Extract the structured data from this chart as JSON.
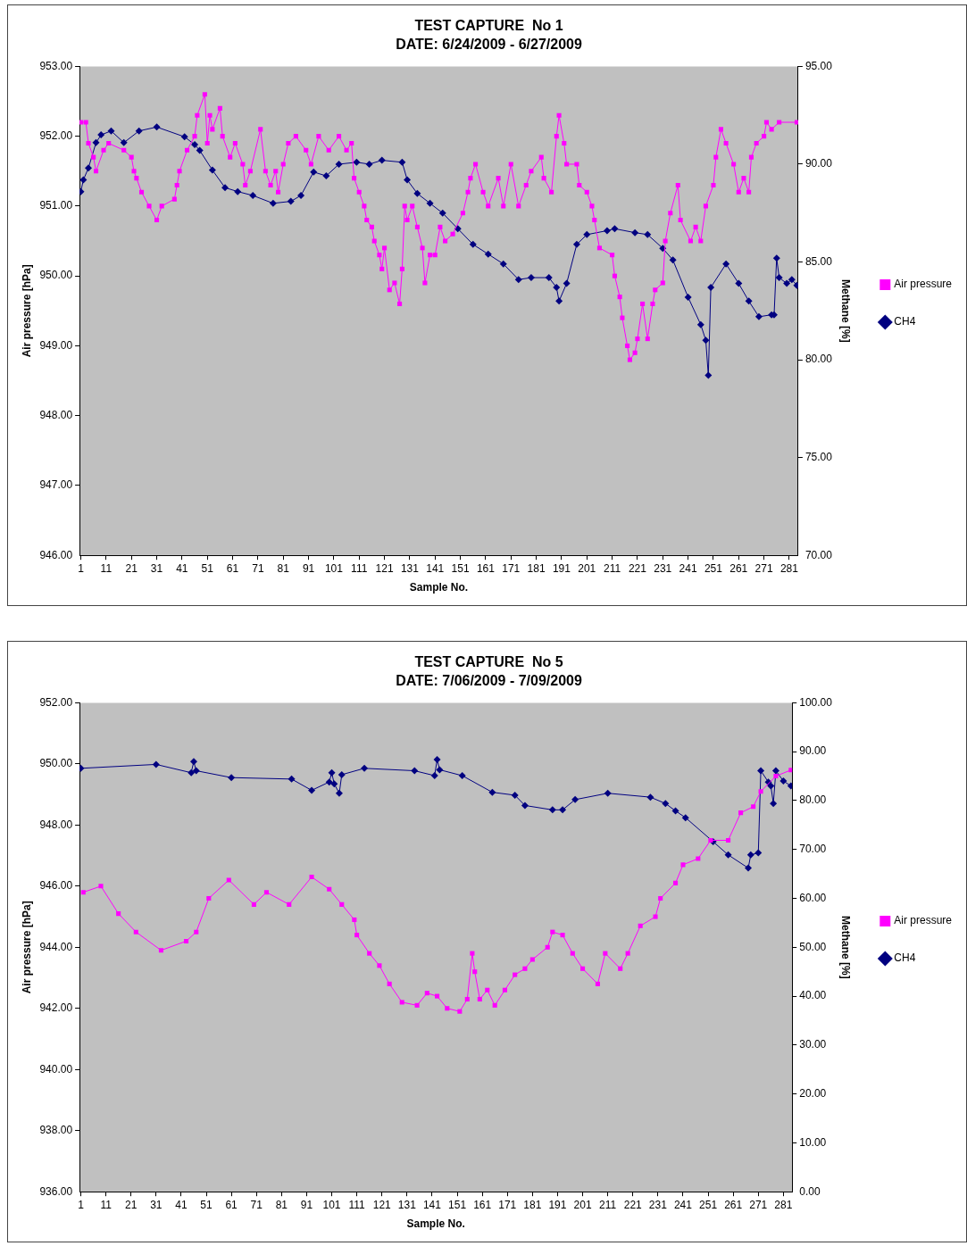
{
  "chart_data": [
    {
      "type": "line",
      "title": "TEST CAPTURE  No 1",
      "subtitle": "DATE: 6/24/2009 - 6/27/2009",
      "xlabel": "Sample No.",
      "ylabel": "Air pressure [hPa]",
      "y2label": "Methane [%]",
      "legend": "right",
      "grid": false,
      "xlim": [
        0.5,
        284.5
      ],
      "xticks": [
        1,
        11,
        21,
        31,
        41,
        51,
        61,
        71,
        81,
        91,
        101,
        111,
        121,
        131,
        141,
        151,
        161,
        171,
        181,
        191,
        201,
        211,
        221,
        231,
        241,
        251,
        261,
        271,
        281
      ],
      "ylim": [
        946,
        953
      ],
      "yticks": [
        {
          "value": 946,
          "label": "946.00"
        },
        {
          "value": 947,
          "label": "947.00"
        },
        {
          "value": 948,
          "label": "948.00"
        },
        {
          "value": 949,
          "label": "949.00"
        },
        {
          "value": 950,
          "label": "950.00"
        },
        {
          "value": 951,
          "label": "951.00"
        },
        {
          "value": 952,
          "label": "952.00"
        },
        {
          "value": 953,
          "label": "953.00"
        }
      ],
      "y2lim": [
        70,
        95
      ],
      "y2ticks": [
        {
          "value": 70,
          "label": "70.00"
        },
        {
          "value": 75,
          "label": "75.00"
        },
        {
          "value": 80,
          "label": "80.00"
        },
        {
          "value": 85,
          "label": "85.00"
        },
        {
          "value": 90,
          "label": "90.00"
        },
        {
          "value": 95,
          "label": "95.00"
        }
      ],
      "series": [
        {
          "name": "Air pressure",
          "color": "#ff00ff",
          "marker": "square",
          "x": [
            1,
            3,
            4,
            6,
            7,
            10,
            12,
            18,
            21,
            22,
            23,
            25,
            28,
            31,
            33,
            38,
            39,
            40,
            43,
            46,
            47,
            50,
            51,
            52,
            53,
            56,
            57,
            60,
            62,
            65,
            66,
            68,
            72,
            74,
            76,
            78,
            79,
            81,
            83,
            86,
            90,
            92,
            95,
            99,
            103,
            106,
            108,
            109,
            111,
            113,
            114,
            116,
            117,
            119,
            120,
            121,
            123,
            125,
            127,
            128,
            129,
            130,
            132,
            134,
            136,
            137,
            139,
            141,
            143,
            145,
            148,
            152,
            154,
            155,
            157,
            160,
            162,
            166,
            168,
            171,
            174,
            177,
            179,
            183,
            184,
            187,
            189,
            190,
            192,
            193,
            197,
            198,
            201,
            203,
            204,
            206,
            211,
            212,
            214,
            215,
            217,
            218,
            220,
            221,
            223,
            225,
            227,
            228,
            231,
            232,
            234,
            237,
            238,
            242,
            244,
            246,
            248,
            251,
            252,
            254,
            256,
            259,
            261,
            263,
            265,
            266,
            268,
            271,
            272,
            274,
            277,
            284
          ],
          "values": [
            952.2,
            952.2,
            951.9,
            951.7,
            951.5,
            951.8,
            951.9,
            951.8,
            951.7,
            951.5,
            951.4,
            951.2,
            951.0,
            950.8,
            951.0,
            951.1,
            951.3,
            951.5,
            951.8,
            952.0,
            952.3,
            952.6,
            951.9,
            952.3,
            952.1,
            952.4,
            952.0,
            951.7,
            951.9,
            951.6,
            951.3,
            951.5,
            952.1,
            951.5,
            951.3,
            951.5,
            951.2,
            951.6,
            951.9,
            952.0,
            951.8,
            951.6,
            952.0,
            951.8,
            952.0,
            951.8,
            951.9,
            951.4,
            951.2,
            951.0,
            950.8,
            950.7,
            950.5,
            950.3,
            950.1,
            950.4,
            949.8,
            949.9,
            949.6,
            950.1,
            951.0,
            950.8,
            951.0,
            950.7,
            950.4,
            949.9,
            950.3,
            950.3,
            950.7,
            950.5,
            950.6,
            950.9,
            951.2,
            951.4,
            951.6,
            951.2,
            951.0,
            951.4,
            951.0,
            951.6,
            951.0,
            951.3,
            951.5,
            951.7,
            951.4,
            951.2,
            952.0,
            952.3,
            951.9,
            951.6,
            951.6,
            951.3,
            951.2,
            951.0,
            950.8,
            950.4,
            950.3,
            950.0,
            949.7,
            949.4,
            949.0,
            948.8,
            948.9,
            949.1,
            949.6,
            949.1,
            949.6,
            949.8,
            949.9,
            950.5,
            950.9,
            951.3,
            950.8,
            950.5,
            950.7,
            950.5,
            951.0,
            951.3,
            951.7,
            952.1,
            951.9,
            951.6,
            951.2,
            951.4,
            951.2,
            951.7,
            951.9,
            952.0,
            952.2,
            952.1,
            952.2,
            952.2
          ]
        },
        {
          "name": "CH4",
          "color": "#000080",
          "marker": "diamond",
          "axis": "y2",
          "x": [
            1,
            2,
            4,
            7,
            9,
            13,
            18,
            24,
            31,
            42,
            46,
            48,
            53,
            58,
            63,
            69,
            77,
            84,
            88,
            93,
            98,
            103,
            110,
            115,
            120,
            128,
            130,
            134,
            139,
            144,
            150,
            156,
            162,
            168,
            174,
            179,
            186,
            189,
            190,
            193,
            197,
            201,
            209,
            212,
            220,
            225,
            231,
            235,
            241,
            246,
            248,
            249,
            250,
            256,
            261,
            265,
            269,
            274,
            275,
            276,
            277,
            280,
            282,
            284
          ],
          "values": [
            88.6,
            89.2,
            89.8,
            91.1,
            91.5,
            91.7,
            91.1,
            91.7,
            91.9,
            91.4,
            91.0,
            90.7,
            89.7,
            88.8,
            88.6,
            88.4,
            88.0,
            88.1,
            88.4,
            89.6,
            89.4,
            90.0,
            90.1,
            90.0,
            90.2,
            90.1,
            89.2,
            88.5,
            88.0,
            87.5,
            86.7,
            85.9,
            85.4,
            84.9,
            84.1,
            84.2,
            84.2,
            83.7,
            83.0,
            83.9,
            85.9,
            86.4,
            86.6,
            86.7,
            86.5,
            86.4,
            85.7,
            85.1,
            83.2,
            81.8,
            81.0,
            79.2,
            83.7,
            84.9,
            83.9,
            83.0,
            82.2,
            82.3,
            82.3,
            85.2,
            84.2,
            83.9,
            84.1,
            83.8
          ]
        }
      ]
    },
    {
      "type": "line",
      "title": "TEST CAPTURE  No 5",
      "subtitle": "DATE: 7/06/2009 - 7/09/2009",
      "xlabel": "Sample No.",
      "ylabel": "Air pressure [hPa]",
      "y2label": "Methane [%]",
      "legend": "right",
      "grid": false,
      "xlim": [
        0.5,
        284.5
      ],
      "xticks": [
        1,
        11,
        21,
        31,
        41,
        51,
        61,
        71,
        81,
        91,
        101,
        111,
        121,
        131,
        141,
        151,
        161,
        171,
        181,
        191,
        201,
        211,
        221,
        231,
        241,
        251,
        261,
        271,
        281
      ],
      "ylim": [
        936,
        952
      ],
      "yticks": [
        {
          "value": 936,
          "label": "936.00"
        },
        {
          "value": 938,
          "label": "938.00"
        },
        {
          "value": 940,
          "label": "940.00"
        },
        {
          "value": 942,
          "label": "942.00"
        },
        {
          "value": 944,
          "label": "944.00"
        },
        {
          "value": 946,
          "label": "946.00"
        },
        {
          "value": 948,
          "label": "948.00"
        },
        {
          "value": 950,
          "label": "950.00"
        },
        {
          "value": 952,
          "label": "952.00"
        }
      ],
      "y2lim": [
        0,
        100
      ],
      "y2ticks": [
        {
          "value": 0,
          "label": "0.00"
        },
        {
          "value": 10,
          "label": "10.00"
        },
        {
          "value": 20,
          "label": "20.00"
        },
        {
          "value": 30,
          "label": "30.00"
        },
        {
          "value": 40,
          "label": "40.00"
        },
        {
          "value": 50,
          "label": "50.00"
        },
        {
          "value": 60,
          "label": "60.00"
        },
        {
          "value": 70,
          "label": "70.00"
        },
        {
          "value": 80,
          "label": "80.00"
        },
        {
          "value": 90,
          "label": "90.00"
        },
        {
          "value": 100,
          "label": "100.00"
        }
      ],
      "series": [
        {
          "name": "Air pressure",
          "color": "#ff00ff",
          "marker": "square",
          "x": [
            2,
            9,
            16,
            23,
            33,
            43,
            47,
            52,
            60,
            70,
            75,
            84,
            93,
            100,
            105,
            110,
            111,
            116,
            120,
            124,
            129,
            135,
            139,
            143,
            147,
            152,
            155,
            157,
            158,
            160,
            163,
            166,
            170,
            174,
            178,
            181,
            187,
            189,
            193,
            197,
            201,
            207,
            210,
            216,
            219,
            224,
            230,
            232,
            238,
            241,
            247,
            252,
            259,
            264,
            269,
            272,
            278,
            284
          ],
          "values": [
            945.8,
            946.0,
            945.1,
            944.5,
            943.9,
            944.2,
            944.5,
            945.6,
            946.2,
            945.4,
            945.8,
            945.4,
            946.3,
            945.9,
            945.4,
            944.9,
            944.4,
            943.8,
            943.4,
            942.8,
            942.2,
            942.1,
            942.5,
            942.4,
            942.0,
            941.9,
            942.3,
            943.8,
            943.2,
            942.3,
            942.6,
            942.1,
            942.6,
            943.1,
            943.3,
            943.6,
            944.0,
            944.5,
            944.4,
            943.8,
            943.3,
            942.8,
            943.8,
            943.3,
            943.8,
            944.7,
            945.0,
            945.6,
            946.1,
            946.7,
            946.9,
            947.5,
            947.5,
            948.4,
            948.6,
            949.1,
            949.6,
            949.8
          ]
        },
        {
          "name": "CH4",
          "color": "#000080",
          "marker": "diamond",
          "axis": "y2",
          "x": [
            1,
            31,
            45,
            46,
            47,
            61,
            85,
            93,
            100,
            101,
            102,
            104,
            105,
            114,
            134,
            142,
            143,
            144,
            153,
            165,
            174,
            178,
            189,
            193,
            198,
            211,
            228,
            234,
            238,
            242,
            253,
            259,
            267,
            268,
            271,
            272,
            275,
            276,
            277,
            278,
            281,
            284
          ],
          "values": [
            86.6,
            87.4,
            85.7,
            88.0,
            86.1,
            84.7,
            84.4,
            82.1,
            83.8,
            85.7,
            83.4,
            81.5,
            85.3,
            86.6,
            86.1,
            85.1,
            88.4,
            86.3,
            85.1,
            81.7,
            81.1,
            79.0,
            78.1,
            78.1,
            80.2,
            81.5,
            80.7,
            79.4,
            77.9,
            76.5,
            71.6,
            68.9,
            66.2,
            68.9,
            69.3,
            86.1,
            83.8,
            83.0,
            79.4,
            86.1,
            84.0,
            83.0
          ]
        }
      ]
    }
  ]
}
